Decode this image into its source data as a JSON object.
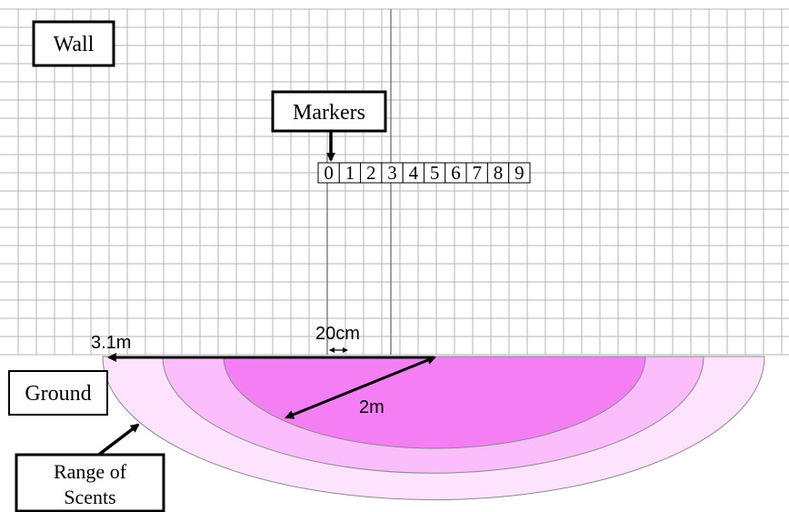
{
  "labels": {
    "wall": "Wall",
    "markers": "Markers",
    "ground": "Ground",
    "range_line1": "Range of",
    "range_line2": "Scents",
    "dist_31": "3.1m",
    "dist_20": "20cm",
    "dist_2": "2m"
  },
  "markers": [
    "0",
    "1",
    "2",
    "3",
    "4",
    "5",
    "6",
    "7",
    "8",
    "9"
  ],
  "colors": {
    "grid": "#b5b5b5",
    "grid_axis": "#6e6e6e",
    "outer_zone": "#fde3fd",
    "middle_zone": "#fbbdfb",
    "inner_zone": "#f47ff4",
    "arc_stroke": "#8a8a8a",
    "arrow": "#000000"
  }
}
